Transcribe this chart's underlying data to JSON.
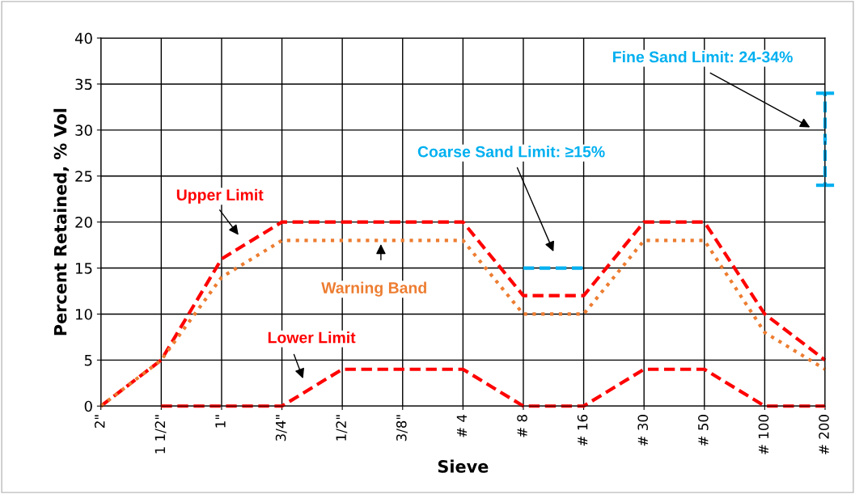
{
  "chart_data": {
    "type": "line",
    "xlabel": "Sieve",
    "ylabel": "Percent Retained, % Vol",
    "categories": [
      "2\"",
      "1 1/2\"",
      "1\"",
      "3/4\"",
      "1/2\"",
      "3/8\"",
      "# 4",
      "# 8",
      "# 16",
      "# 30",
      "# 50",
      "# 100",
      "# 200"
    ],
    "series": [
      {
        "color": "#ff0000",
        "line_style": "dashed",
        "values": [
          0,
          5,
          16,
          20,
          20,
          20,
          20,
          12,
          12,
          20,
          20,
          10,
          5
        ]
      },
      {
        "color": "#ed7d31",
        "line_style": "dotted",
        "values": [
          0,
          5,
          14,
          18,
          18,
          18,
          18,
          10,
          10,
          18,
          18,
          8,
          4
        ]
      },
      {
        "color": "#ff0000",
        "line_style": "dashed",
        "values": [
          null,
          0,
          0,
          0,
          4,
          4,
          4,
          0,
          0,
          4,
          4,
          0,
          0
        ]
      },
      {
        "color": "#00b0f0",
        "line_style": "dashed",
        "values": [
          null,
          null,
          null,
          null,
          null,
          null,
          null,
          15,
          15,
          null,
          null,
          null,
          null
        ]
      },
      {
        "type": "scatter",
        "color": "#00b0f0",
        "line_style": "dashed",
        "marker": "square",
        "values": [
          null,
          null,
          null,
          null,
          null,
          null,
          null,
          null,
          null,
          null,
          null,
          null,
          29
        ],
        "errors": [
          null,
          null,
          null,
          null,
          null,
          null,
          null,
          null,
          null,
          null,
          null,
          null,
          5
        ]
      }
    ],
    "ylim": [
      0,
      40
    ],
    "yticks": [
      0,
      5,
      10,
      15,
      20,
      25,
      30,
      35,
      40
    ],
    "grid": true,
    "marker": "none",
    "annotations": [
      "Upper Limit",
      "Warning Band",
      "Lower Limit",
      "Coarse Sand Limit: ≥15%",
      "Fine Sand Limit: 24-34%"
    ]
  }
}
